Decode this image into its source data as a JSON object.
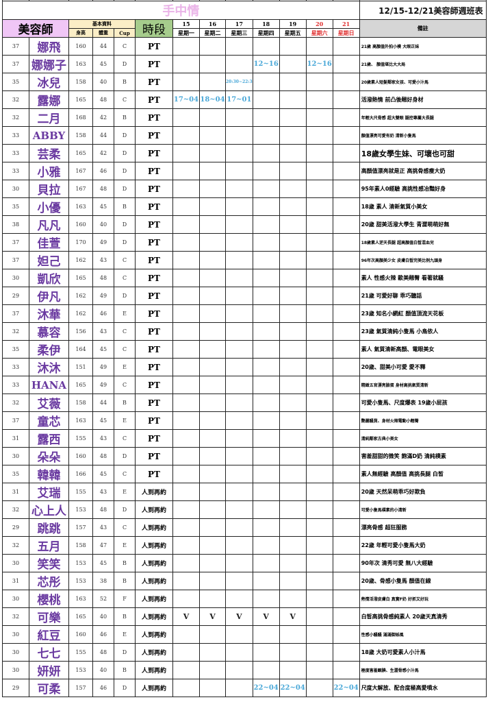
{
  "title": "手中情",
  "week_range": "12/15-12/21美容師週班表",
  "header": {
    "beautician": "美容師",
    "basic_info": "基本資料",
    "height": "身高",
    "weight": "體重",
    "cup": "Cup",
    "period": "時段",
    "notes": "備註",
    "days": [
      {
        "date": "15",
        "weekday": "星期一"
      },
      {
        "date": "16",
        "weekday": "星期二"
      },
      {
        "date": "17",
        "weekday": "星期三"
      },
      {
        "date": "18",
        "weekday": "星期四"
      },
      {
        "date": "19",
        "weekday": "星期五"
      },
      {
        "date": "20",
        "weekday": "星期六",
        "weekend": true
      },
      {
        "date": "21",
        "weekday": "星期日",
        "weekend": true
      }
    ]
  },
  "weekend_color": "#e03030",
  "name_color": "#6a3aa0",
  "schedule_color": "#4aa8d8",
  "rows": [
    {
      "age": "37",
      "name": "娜飛",
      "height": "160",
      "weight": "44",
      "cup": "C",
      "period": "PT",
      "days": [
        "",
        "",
        "",
        "",
        "",
        "",
        ""
      ],
      "note": "21歲 高顏值外拍小模 大眼正妹"
    },
    {
      "age": "37",
      "name": "娜娜子",
      "height": "163",
      "weight": "45",
      "cup": "D",
      "period": "PT",
      "days": [
        "",
        "",
        "",
        "12~16",
        "",
        "12~16",
        ""
      ],
      "note": "21歲、 顏值堪比大大局"
    },
    {
      "age": "35",
      "name": "冰兒",
      "height": "158",
      "weight": "40",
      "cup": "B",
      "period": "PT",
      "days": [
        "",
        "",
        "20:30~22:3",
        "",
        "",
        "",
        ""
      ],
      "note": "20歲素人短髮鄰家女孩、可愛小汁馬"
    },
    {
      "age": "32",
      "name": "露娜",
      "height": "165",
      "weight": "48",
      "cup": "C",
      "period": "PT",
      "days": [
        "17~04",
        "18~04",
        "17~01",
        "",
        "",
        "",
        ""
      ],
      "note": "活潑熱情 前凸後翹好身材"
    },
    {
      "age": "32",
      "name": "二月",
      "height": "168",
      "weight": "42",
      "cup": "B",
      "period": "PT",
      "days": [
        "",
        "",
        "",
        "",
        "",
        "",
        ""
      ],
      "note": "年輕大尺骨感 超大雙眼 腿控專屬大長腿"
    },
    {
      "age": "33",
      "name": "ABBY",
      "height": "158",
      "weight": "44",
      "cup": "D",
      "period": "PT",
      "days": [
        "",
        "",
        "",
        "",
        "",
        "",
        ""
      ],
      "note": "顏值漂亮可愛有奶 清新小隻馬"
    },
    {
      "age": "33",
      "name": "芸柔",
      "height": "165",
      "weight": "42",
      "cup": "D",
      "period": "PT",
      "days": [
        "",
        "",
        "",
        "",
        "",
        "",
        ""
      ],
      "note": "18歲女學生妹、可壞也可甜"
    },
    {
      "age": "33",
      "name": "小雅",
      "height": "167",
      "weight": "46",
      "cup": "D",
      "period": "PT",
      "days": [
        "",
        "",
        "",
        "",
        "",
        "",
        ""
      ],
      "note": "高顏值漂亮就是正 高挑骨感瘦大奶"
    },
    {
      "age": "30",
      "name": "貝拉",
      "height": "167",
      "weight": "48",
      "cup": "D",
      "period": "PT",
      "days": [
        "",
        "",
        "",
        "",
        "",
        "",
        ""
      ],
      "note": "95年素人0經驗 高挑性感冶豔好身"
    },
    {
      "age": "35",
      "name": "小優",
      "height": "163",
      "weight": "45",
      "cup": "B",
      "period": "PT",
      "days": [
        "",
        "",
        "",
        "",
        "",
        "",
        ""
      ],
      "note": "18歲 素人 清新氣質小美女"
    },
    {
      "age": "38",
      "name": "凡凡",
      "height": "160",
      "weight": "40",
      "cup": "D",
      "period": "PT",
      "days": [
        "",
        "",
        "",
        "",
        "",
        "",
        ""
      ],
      "note": "20歲 甜美活潑大學生 青澀萌萌好無"
    },
    {
      "age": "37",
      "name": "佳萱",
      "height": "170",
      "weight": "49",
      "cup": "D",
      "period": "PT",
      "days": [
        "",
        "",
        "",
        "",
        "",
        "",
        ""
      ],
      "note": "18歲素人逆天長腿 超高顏值白皙混血兒"
    },
    {
      "age": "37",
      "name": "妲己",
      "height": "162",
      "weight": "43",
      "cup": "C",
      "period": "PT",
      "days": [
        "",
        "",
        "",
        "",
        "",
        "",
        ""
      ],
      "note": "96年次高顏美少女 皮膚白皙完美比例九頭身"
    },
    {
      "age": "30",
      "name": "凱欣",
      "height": "165",
      "weight": "48",
      "cup": "C",
      "period": "PT",
      "days": [
        "",
        "",
        "",
        "",
        "",
        "",
        ""
      ],
      "note": "素人 性感火辣 歐美翹臀 看著就騷"
    },
    {
      "age": "29",
      "name": "伊凡",
      "height": "162",
      "weight": "49",
      "cup": "D",
      "period": "PT",
      "days": [
        "",
        "",
        "",
        "",
        "",
        "",
        ""
      ],
      "note": "21歲 可愛好聊 乖巧聽話"
    },
    {
      "age": "37",
      "name": "沐華",
      "height": "162",
      "weight": "46",
      "cup": "E",
      "period": "PT",
      "days": [
        "",
        "",
        "",
        "",
        "",
        "",
        ""
      ],
      "note": "23歲 知名小網紅 顏值頂流天花板"
    },
    {
      "age": "32",
      "name": "慕容",
      "height": "156",
      "weight": "43",
      "cup": "C",
      "period": "PT",
      "days": [
        "",
        "",
        "",
        "",
        "",
        "",
        ""
      ],
      "note": "23歲 氣質清純小隻馬 小鳥依人"
    },
    {
      "age": "35",
      "name": "柔伊",
      "height": "164",
      "weight": "45",
      "cup": "C",
      "period": "PT",
      "days": [
        "",
        "",
        "",
        "",
        "",
        "",
        ""
      ],
      "note": "素人 氣質清新高顏、電眼美女"
    },
    {
      "age": "33",
      "name": "沐沐",
      "height": "151",
      "weight": "49",
      "cup": "E",
      "period": "PT",
      "days": [
        "",
        "",
        "",
        "",
        "",
        "",
        ""
      ],
      "note": "20歲、甜美小可愛 愛不釋"
    },
    {
      "age": "33",
      "name": "HANA",
      "height": "165",
      "weight": "49",
      "cup": "C",
      "period": "PT",
      "days": [
        "",
        "",
        "",
        "",
        "",
        "",
        ""
      ],
      "note": "精緻五官漂亮臉蛋 身材高挑氣質清新"
    },
    {
      "age": "32",
      "name": "艾薇",
      "height": "158",
      "weight": "44",
      "cup": "B",
      "period": "PT",
      "days": [
        "",
        "",
        "",
        "",
        "",
        "",
        ""
      ],
      "note": "可愛小隻馬、尺度爆表 19歲小屁孩"
    },
    {
      "age": "37",
      "name": "童芯",
      "height": "163",
      "weight": "45",
      "cup": "E",
      "period": "PT",
      "days": [
        "",
        "",
        "",
        "",
        "",
        "",
        ""
      ],
      "note": "艷麗騷貨、身材火辣電動小翹臀"
    },
    {
      "age": "31",
      "name": "露西",
      "height": "155",
      "weight": "43",
      "cup": "C",
      "period": "PT",
      "days": [
        "",
        "",
        "",
        "",
        "",
        "",
        ""
      ],
      "note": "清純鄰家古典小美女"
    },
    {
      "age": "30",
      "name": "朵朵",
      "height": "160",
      "weight": "48",
      "cup": "D",
      "period": "PT",
      "days": [
        "",
        "",
        "",
        "",
        "",
        "",
        ""
      ],
      "note": "害羞甜甜的微笑 飽滿D奶 清純樸素"
    },
    {
      "age": "35",
      "name": "韓韓",
      "height": "166",
      "weight": "45",
      "cup": "C",
      "period": "PT",
      "days": [
        "",
        "",
        "",
        "",
        "",
        "",
        ""
      ],
      "note": "素人無經驗 高顏值 高挑長腿 白皙"
    },
    {
      "age": "31",
      "name": "艾瑞",
      "height": "155",
      "weight": "43",
      "cup": "E",
      "period": "人到再約",
      "days": [
        "",
        "",
        "",
        "",
        "",
        "",
        ""
      ],
      "note": "20歲 天然呆萌乖巧好欺負"
    },
    {
      "age": "32",
      "name": "心上人",
      "height": "153",
      "weight": "48",
      "cup": "D",
      "period": "人到再約",
      "days": [
        "",
        "",
        "",
        "",
        "",
        "",
        ""
      ],
      "note": "可愛小隻馬樸素的小清新"
    },
    {
      "age": "29",
      "name": "跳跳",
      "height": "157",
      "weight": "43",
      "cup": "C",
      "period": "人到再約",
      "days": [
        "",
        "",
        "",
        "",
        "",
        "",
        ""
      ],
      "note": "漂亮骨感 超狂服務"
    },
    {
      "age": "32",
      "name": "五月",
      "height": "158",
      "weight": "47",
      "cup": "E",
      "period": "人到再約",
      "days": [
        "",
        "",
        "",
        "",
        "",
        "",
        ""
      ],
      "note": "22歲 年輕可愛小隻馬大奶"
    },
    {
      "age": "30",
      "name": "笑笑",
      "height": "153",
      "weight": "45",
      "cup": "B",
      "period": "人到再約",
      "days": [
        "",
        "",
        "",
        "",
        "",
        "",
        ""
      ],
      "note": "90年次 清秀可愛 無八大經驗"
    },
    {
      "age": "31",
      "name": "芯彤",
      "height": "153",
      "weight": "38",
      "cup": "B",
      "period": "人到再約",
      "days": [
        "",
        "",
        "",
        "",
        "",
        "",
        ""
      ],
      "note": "20歲、骨感小隻馬 顏值在線"
    },
    {
      "age": "30",
      "name": "櫻桃",
      "height": "163",
      "weight": "52",
      "cup": "F",
      "period": "人到再約",
      "days": [
        "",
        "",
        "",
        "",
        "",
        "",
        ""
      ],
      "note": "熱情活潑皮膚白 真實F奶 好抓又好玩"
    },
    {
      "age": "32",
      "name": "可樂",
      "height": "165",
      "weight": "40",
      "cup": "B",
      "period": "人到再約",
      "days": [
        "V",
        "V",
        "V",
        "V",
        "V",
        "",
        ""
      ],
      "note": "白皙高挑骨感純素人 20歲天真清秀"
    },
    {
      "age": "30",
      "name": "紅豆",
      "height": "160",
      "weight": "46",
      "cup": "E",
      "period": "人到再約",
      "days": [
        "",
        "",
        "",
        "",
        "",
        "",
        ""
      ],
      "note": "性感小騷騷 滿滿御姊風"
    },
    {
      "age": "30",
      "name": "七七",
      "height": "155",
      "weight": "48",
      "cup": "D",
      "period": "人到再約",
      "days": [
        "",
        "",
        "",
        "",
        "",
        "",
        ""
      ],
      "note": "18歲 大奶可愛素人小汁馬"
    },
    {
      "age": "30",
      "name": "妍妍",
      "height": "153",
      "weight": "40",
      "cup": "B",
      "period": "人到再約",
      "days": [
        "",
        "",
        "",
        "",
        "",
        "",
        ""
      ],
      "note": "極度害羞靦腆、生澀骨感小汁馬"
    },
    {
      "age": "29",
      "name": "可柔",
      "height": "157",
      "weight": "46",
      "cup": "D",
      "period": "人到再約",
      "days": [
        "",
        "",
        "",
        "22~04",
        "22~04",
        "",
        "22~04"
      ],
      "note": "尺度大解放、配合度極高愛噴水"
    }
  ]
}
